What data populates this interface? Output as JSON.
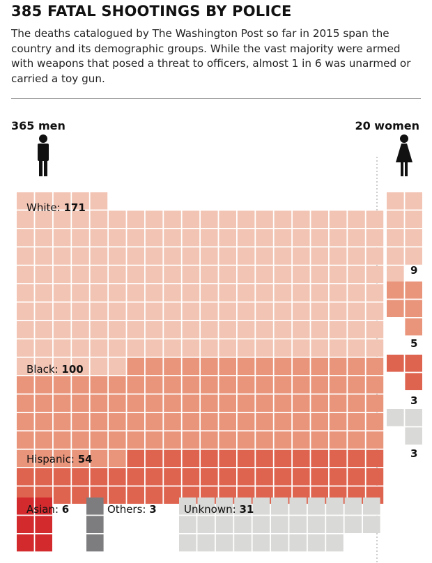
{
  "title": "385 FATAL SHOOTINGS BY POLICE",
  "subtitle": "The deaths catalogued by The Washington Post so far in 2015 span the country and its demographic groups. While the vast majority were armed with weapons that posed a threat to officers, almost 1 in 6 was unarmed or carried a toy gun.",
  "chart_data": {
    "type": "waffle",
    "title": "385 FATAL SHOOTINGS BY POLICE",
    "total": 385,
    "unit": "one square = one death",
    "groups": [
      {
        "name": "men",
        "label": "365 men",
        "count": 365,
        "icon": "male-figure-icon",
        "categories": [
          {
            "name": "White",
            "label": "White:",
            "value": 171,
            "value_label": "171",
            "color": "#f2c4b4"
          },
          {
            "name": "Black",
            "label": "Black:",
            "value": 100,
            "value_label": "100",
            "color": "#e9957c"
          },
          {
            "name": "Hispanic",
            "label": "Hispanic:",
            "value": 54,
            "value_label": "54",
            "color": "#de6450"
          },
          {
            "name": "Asian",
            "label": "Asian:",
            "value": 6,
            "value_label": "6",
            "color": "#d32a2e"
          },
          {
            "name": "Others",
            "label": "Others:",
            "value": 3,
            "value_label": "3",
            "color": "#7d7d7f"
          },
          {
            "name": "Unknown",
            "label": "Unknown:",
            "value": 31,
            "value_label": "31",
            "color": "#d9d9d7"
          }
        ]
      },
      {
        "name": "women",
        "label": "20 women",
        "count": 20,
        "icon": "female-figure-icon",
        "categories": [
          {
            "name": "White",
            "value": 9,
            "value_label": "9",
            "color": "#f2c4b4"
          },
          {
            "name": "Black",
            "value": 5,
            "value_label": "5",
            "color": "#e9957c"
          },
          {
            "name": "Hispanic",
            "value": 3,
            "value_label": "3",
            "color": "#de6450"
          },
          {
            "name": "Unknown",
            "value": 3,
            "value_label": "3",
            "color": "#d9d9d7"
          }
        ]
      }
    ]
  }
}
